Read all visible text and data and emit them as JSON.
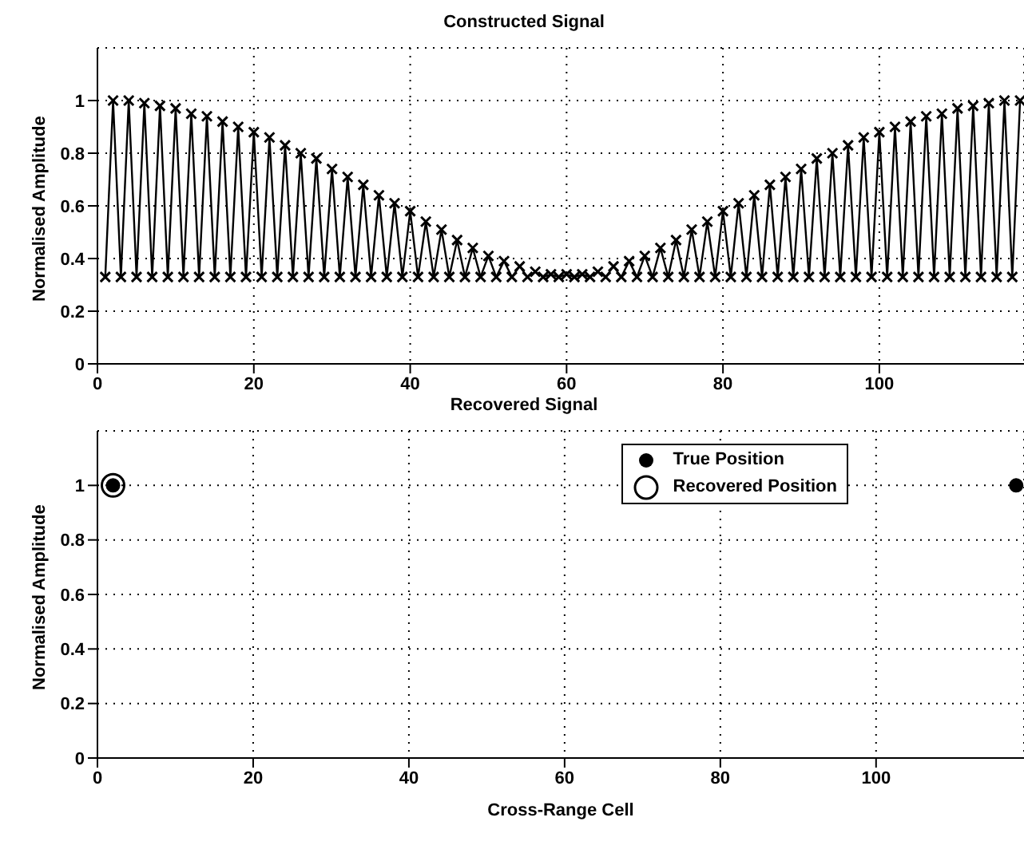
{
  "chart_data": [
    {
      "type": "line",
      "title": "Constructed Signal",
      "ylabel": "Normalised Amplitude",
      "color": "#000000",
      "marker": "cross",
      "line_style": "solid",
      "grid": true,
      "x": [
        1,
        2,
        3,
        4,
        5,
        6,
        7,
        8,
        9,
        10,
        11,
        12,
        13,
        14,
        15,
        16,
        17,
        18,
        19,
        20,
        21,
        22,
        23,
        24,
        25,
        26,
        27,
        28,
        29,
        30,
        31,
        32,
        33,
        34,
        35,
        36,
        37,
        38,
        39,
        40,
        41,
        42,
        43,
        44,
        45,
        46,
        47,
        48,
        49,
        50,
        51,
        52,
        53,
        54,
        55,
        56,
        57,
        58,
        59,
        60,
        61,
        62,
        63,
        64,
        65,
        66,
        67,
        68,
        69,
        70,
        71,
        72,
        73,
        74,
        75,
        76,
        77,
        78,
        79,
        80,
        81,
        82,
        83,
        84,
        85,
        86,
        87,
        88,
        89,
        90,
        91,
        92,
        93,
        94,
        95,
        96,
        97,
        98,
        99,
        100,
        101,
        102,
        103,
        104,
        105,
        106,
        107,
        108,
        109,
        110,
        111,
        112,
        113,
        114,
        115,
        116,
        117,
        118
      ],
      "values": [
        0.33,
        1.0,
        0.33,
        1.0,
        0.33,
        0.99,
        0.33,
        0.98,
        0.33,
        0.97,
        0.33,
        0.95,
        0.33,
        0.94,
        0.33,
        0.92,
        0.33,
        0.9,
        0.33,
        0.88,
        0.33,
        0.86,
        0.33,
        0.83,
        0.33,
        0.8,
        0.33,
        0.78,
        0.33,
        0.74,
        0.33,
        0.71,
        0.33,
        0.68,
        0.33,
        0.64,
        0.33,
        0.61,
        0.33,
        0.58,
        0.33,
        0.54,
        0.33,
        0.51,
        0.33,
        0.47,
        0.33,
        0.44,
        0.33,
        0.41,
        0.33,
        0.39,
        0.33,
        0.37,
        0.33,
        0.35,
        0.33,
        0.34,
        0.33,
        0.34,
        0.33,
        0.34,
        0.33,
        0.35,
        0.33,
        0.37,
        0.33,
        0.39,
        0.33,
        0.41,
        0.33,
        0.44,
        0.33,
        0.47,
        0.33,
        0.51,
        0.33,
        0.54,
        0.33,
        0.58,
        0.33,
        0.61,
        0.33,
        0.64,
        0.33,
        0.68,
        0.33,
        0.71,
        0.33,
        0.74,
        0.33,
        0.78,
        0.33,
        0.8,
        0.33,
        0.83,
        0.33,
        0.86,
        0.33,
        0.88,
        0.33,
        0.9,
        0.33,
        0.92,
        0.33,
        0.94,
        0.33,
        0.95,
        0.33,
        0.97,
        0.33,
        0.98,
        0.33,
        0.99,
        0.33,
        1.0,
        0.33,
        1.0
      ],
      "xlim": [
        0,
        118.5
      ],
      "xticks": [
        0,
        20,
        40,
        60,
        80,
        100
      ],
      "ylim": [
        0,
        1.2
      ],
      "yticks": [
        0,
        0.2,
        0.4,
        0.6,
        0.8,
        1
      ]
    },
    {
      "type": "scatter",
      "title": "Recovered Signal",
      "xlabel": "Cross-Range Cell",
      "ylabel": "Normalised Amplitude",
      "grid": true,
      "legend": "top right",
      "marker": "circle",
      "series": [
        {
          "name": "True Position",
          "color": "#000000",
          "values": [
            1,
            1
          ]
        },
        {
          "name": "Recovered Position",
          "color": "#000000",
          "values": [
            1,
            null
          ]
        }
      ],
      "x": [
        2,
        118
      ],
      "xlim": [
        0,
        119
      ],
      "xticks": [
        0,
        20,
        40,
        60,
        80,
        100
      ],
      "ylim": [
        0,
        1.2
      ],
      "yticks": [
        0,
        0.2,
        0.4,
        0.6,
        0.8,
        1
      ]
    }
  ]
}
